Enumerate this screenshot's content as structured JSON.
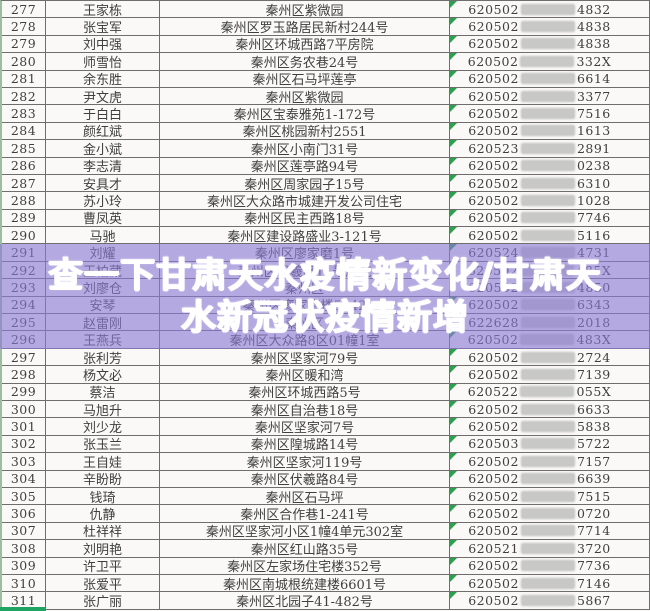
{
  "watermark": {
    "line1": "查一下甘肃天水疫情新变化/甘肃天",
    "line2": "水新冠状疫情新增",
    "band_color": "#8c7ad4",
    "text_color": "#ffffff"
  },
  "colors": {
    "grid_border": "#6e6e6e",
    "cell_background": "#faf9f7",
    "text": "#3f3f3f",
    "error_triangle_green": "#2e9e4f",
    "redaction_gray": "#c8c8c6",
    "selection_green": "#1fa463"
  },
  "table": {
    "rows": [
      {
        "num": "277",
        "name": "王家栋",
        "address": "秦州区紫微园",
        "id_prefix": "620502",
        "id_suffix": "4832"
      },
      {
        "num": "278",
        "name": "张宝军",
        "address": "秦州区罗玉路居民新村244号",
        "id_prefix": "620502",
        "id_suffix": "4838"
      },
      {
        "num": "279",
        "name": "刘中强",
        "address": "秦州区环城西路7平房院",
        "id_prefix": "620502",
        "id_suffix": "4838"
      },
      {
        "num": "280",
        "name": "师雪怡",
        "address": "秦州区务农巷24号",
        "id_prefix": "620502",
        "id_suffix": "332X"
      },
      {
        "num": "281",
        "name": "余东胜",
        "address": "秦州区石马坪莲亭",
        "id_prefix": "620502",
        "id_suffix": "6614"
      },
      {
        "num": "282",
        "name": "尹文虎",
        "address": "秦州区紫微园",
        "id_prefix": "620502",
        "id_suffix": "3377"
      },
      {
        "num": "283",
        "name": "于白白",
        "address": "秦州区宝泰雅苑1-172号",
        "id_prefix": "620502",
        "id_suffix": "7516"
      },
      {
        "num": "284",
        "name": "颜红斌",
        "address": "秦州区桃园新村2551",
        "id_prefix": "620502",
        "id_suffix": "1613"
      },
      {
        "num": "285",
        "name": "金小斌",
        "address": "秦州区小南门31号",
        "id_prefix": "620523",
        "id_suffix": "2891"
      },
      {
        "num": "286",
        "name": "李志清",
        "address": "秦州区莲亭路94号",
        "id_prefix": "620502",
        "id_suffix": "0238"
      },
      {
        "num": "287",
        "name": "安具才",
        "address": "秦州区周家园子15号",
        "id_prefix": "620502",
        "id_suffix": "6310"
      },
      {
        "num": "288",
        "name": "苏小玲",
        "address": "秦州区大众路市城建开发公司住宅",
        "id_prefix": "620502",
        "id_suffix": "1028"
      },
      {
        "num": "289",
        "name": "曹凤英",
        "address": "秦州区民主西路18号",
        "id_prefix": "620502",
        "id_suffix": "7746"
      },
      {
        "num": "290",
        "name": "马驰",
        "address": "秦州区建设路盛业3-121号",
        "id_prefix": "620502",
        "id_suffix": "5116"
      },
      {
        "num": "291",
        "name": "刘耀",
        "address": "秦州区廖家磨1号",
        "id_prefix": "620524",
        "id_suffix": "4731"
      },
      {
        "num": "292",
        "name": "王柏葳",
        "address": "秦州区伏羲路11号后院",
        "id_prefix": "620502",
        "id_suffix": "485X"
      },
      {
        "num": "293",
        "name": "刘廖仓",
        "address": "秦州区",
        "id_prefix": "620502",
        "id_suffix": "4850"
      },
      {
        "num": "294",
        "name": "安琴",
        "address": "秦州区廖家磨楼5242",
        "id_prefix": "620502",
        "id_suffix": "6343"
      },
      {
        "num": "295",
        "name": "赵雷刚",
        "address": "秦州区",
        "id_prefix": "622628",
        "id_suffix": "2018"
      },
      {
        "num": "296",
        "name": "王燕兵",
        "address": "秦州区大众路8区01幢1室",
        "id_prefix": "620502",
        "id_suffix": "483X"
      },
      {
        "num": "297",
        "name": "张利芳",
        "address": "秦州区坚家河79号",
        "id_prefix": "620502",
        "id_suffix": "2724"
      },
      {
        "num": "298",
        "name": "杨文必",
        "address": "秦州区暖和湾",
        "id_prefix": "620502",
        "id_suffix": "7139"
      },
      {
        "num": "299",
        "name": "蔡洁",
        "address": "秦州区环城西路5号",
        "id_prefix": "620522",
        "id_suffix": "055X"
      },
      {
        "num": "300",
        "name": "马旭升",
        "address": "秦州区自治巷18号",
        "id_prefix": "620502",
        "id_suffix": "6633"
      },
      {
        "num": "301",
        "name": "刘少龙",
        "address": "秦州区坚家河7号",
        "id_prefix": "620502",
        "id_suffix": "5838"
      },
      {
        "num": "302",
        "name": "张玉兰",
        "address": "秦州区隍城路14号",
        "id_prefix": "620503",
        "id_suffix": "5722"
      },
      {
        "num": "303",
        "name": "王自娃",
        "address": "秦州区坚家河119号",
        "id_prefix": "620502",
        "id_suffix": "7157"
      },
      {
        "num": "304",
        "name": "辛盼盼",
        "address": "秦州区伏羲路84号",
        "id_prefix": "620502",
        "id_suffix": "6639"
      },
      {
        "num": "305",
        "name": "钱琦",
        "address": "秦州区石马坪",
        "id_prefix": "620502",
        "id_suffix": "7515"
      },
      {
        "num": "306",
        "name": "仇静",
        "address": "秦州区合作巷1-241号",
        "id_prefix": "620502",
        "id_suffix": "0720"
      },
      {
        "num": "307",
        "name": "杜祥祥",
        "address": "秦州区坚家河小区1幢4单元302室",
        "id_prefix": "620502",
        "id_suffix": "7714"
      },
      {
        "num": "308",
        "name": "刘明艳",
        "address": "秦州区红山路35号",
        "id_prefix": "620521",
        "id_suffix": "3720"
      },
      {
        "num": "309",
        "name": "许卫平",
        "address": "秦州区左家场住宅楼352号",
        "id_prefix": "620502",
        "id_suffix": "7736"
      },
      {
        "num": "310",
        "name": "张爱平",
        "address": "秦州区南城根统建楼6601号",
        "id_prefix": "620502",
        "id_suffix": "7146"
      },
      {
        "num": "311",
        "name": "张广丽",
        "address": "秦州区北园子41-482号",
        "id_prefix": "620502",
        "id_suffix": "5867"
      }
    ]
  }
}
